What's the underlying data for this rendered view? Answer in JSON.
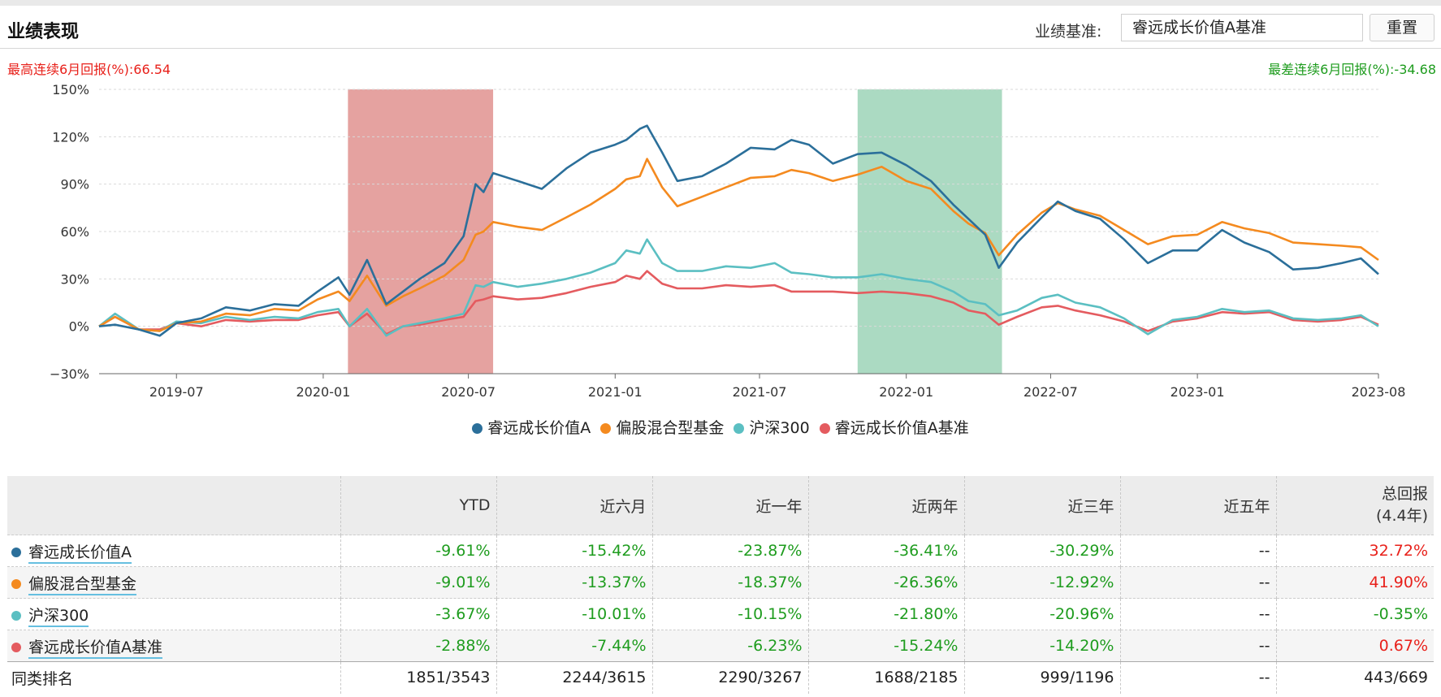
{
  "header": {
    "title": "业绩表现",
    "bench_label": "业绩基准:",
    "bench_value": "睿远成长价值A基准",
    "reset_label": "重置"
  },
  "extremes": {
    "best": "最高连续6月回报(%):66.54",
    "worst": "最差连续6月回报(%):-34.68"
  },
  "colors": {
    "fund": "#2b6f9a",
    "peer": "#f48a1f",
    "hs300": "#5bbfc2",
    "bench": "#e45b5f",
    "best_band": "#dc8380",
    "worst_band": "#8fcdae",
    "neg": "#1e9c1e",
    "pos": "#e8201a"
  },
  "chart_data": {
    "type": "line",
    "x_ticks": [
      "2019-07",
      "2020-01",
      "2020-07",
      "2021-01",
      "2021-07",
      "2022-01",
      "2022-07",
      "2023-01",
      "2023-08"
    ],
    "y_ticks": [
      "150%",
      "120%",
      "90%",
      "60%",
      "30%",
      "0%",
      "−30%"
    ],
    "ylim": [
      -30,
      150
    ],
    "grid": "horizontal dashed",
    "legend_position": "bottom",
    "highlight_bands": [
      {
        "kind": "best_6m",
        "from": "2020-02",
        "to": "2020-08"
      },
      {
        "kind": "worst_6m",
        "from": "2021-11",
        "to": "2022-05"
      }
    ],
    "series": [
      {
        "name": "睿远成长价值A",
        "points": [
          [
            "2019-03-26",
            0
          ],
          [
            "2019-04-15",
            1
          ],
          [
            "2019-05-15",
            -2
          ],
          [
            "2019-06-10",
            -6
          ],
          [
            "2019-07-01",
            2
          ],
          [
            "2019-08-01",
            5
          ],
          [
            "2019-09-01",
            12
          ],
          [
            "2019-10-01",
            10
          ],
          [
            "2019-11-01",
            14
          ],
          [
            "2019-12-01",
            13
          ],
          [
            "2019-12-25",
            22
          ],
          [
            "2020-01-20",
            31
          ],
          [
            "2020-02-03",
            20
          ],
          [
            "2020-02-25",
            42
          ],
          [
            "2020-03-20",
            14
          ],
          [
            "2020-04-10",
            22
          ],
          [
            "2020-05-01",
            30
          ],
          [
            "2020-06-01",
            40
          ],
          [
            "2020-06-25",
            57
          ],
          [
            "2020-07-10",
            90
          ],
          [
            "2020-07-20",
            85
          ],
          [
            "2020-08-01",
            97
          ],
          [
            "2020-09-01",
            92
          ],
          [
            "2020-10-01",
            87
          ],
          [
            "2020-11-01",
            100
          ],
          [
            "2020-12-01",
            110
          ],
          [
            "2021-01-01",
            115
          ],
          [
            "2021-01-15",
            118
          ],
          [
            "2021-02-01",
            125
          ],
          [
            "2021-02-10",
            127
          ],
          [
            "2021-03-01",
            110
          ],
          [
            "2021-03-20",
            92
          ],
          [
            "2021-04-20",
            95
          ],
          [
            "2021-05-20",
            103
          ],
          [
            "2021-06-20",
            113
          ],
          [
            "2021-07-20",
            112
          ],
          [
            "2021-08-10",
            118
          ],
          [
            "2021-09-01",
            115
          ],
          [
            "2021-10-01",
            103
          ],
          [
            "2021-11-01",
            109
          ],
          [
            "2021-12-01",
            110
          ],
          [
            "2022-01-01",
            102
          ],
          [
            "2022-02-01",
            92
          ],
          [
            "2022-03-01",
            77
          ],
          [
            "2022-03-20",
            68
          ],
          [
            "2022-04-10",
            58
          ],
          [
            "2022-04-27",
            37
          ],
          [
            "2022-05-20",
            53
          ],
          [
            "2022-06-20",
            69
          ],
          [
            "2022-07-10",
            79
          ],
          [
            "2022-08-01",
            73
          ],
          [
            "2022-09-01",
            68
          ],
          [
            "2022-10-01",
            55
          ],
          [
            "2022-10-31",
            40
          ],
          [
            "2022-12-01",
            48
          ],
          [
            "2023-01-01",
            48
          ],
          [
            "2023-02-01",
            61
          ],
          [
            "2023-03-01",
            53
          ],
          [
            "2023-04-01",
            47
          ],
          [
            "2023-05-01",
            36
          ],
          [
            "2023-06-01",
            37
          ],
          [
            "2023-07-01",
            40
          ],
          [
            "2023-07-25",
            43
          ],
          [
            "2023-08-16",
            33
          ]
        ]
      },
      {
        "name": "偏股混合型基金",
        "points": [
          [
            "2019-03-26",
            0
          ],
          [
            "2019-04-15",
            6
          ],
          [
            "2019-05-15",
            -2
          ],
          [
            "2019-06-10",
            -3
          ],
          [
            "2019-07-01",
            2
          ],
          [
            "2019-08-01",
            3
          ],
          [
            "2019-09-01",
            8
          ],
          [
            "2019-10-01",
            7
          ],
          [
            "2019-11-01",
            11
          ],
          [
            "2019-12-01",
            10
          ],
          [
            "2019-12-25",
            17
          ],
          [
            "2020-01-20",
            22
          ],
          [
            "2020-02-03",
            16
          ],
          [
            "2020-02-25",
            32
          ],
          [
            "2020-03-20",
            13
          ],
          [
            "2020-04-10",
            19
          ],
          [
            "2020-05-01",
            24
          ],
          [
            "2020-06-01",
            32
          ],
          [
            "2020-06-25",
            42
          ],
          [
            "2020-07-10",
            58
          ],
          [
            "2020-07-20",
            60
          ],
          [
            "2020-08-01",
            66
          ],
          [
            "2020-09-01",
            63
          ],
          [
            "2020-10-01",
            61
          ],
          [
            "2020-11-01",
            69
          ],
          [
            "2020-12-01",
            77
          ],
          [
            "2021-01-01",
            87
          ],
          [
            "2021-01-15",
            93
          ],
          [
            "2021-02-01",
            95
          ],
          [
            "2021-02-10",
            106
          ],
          [
            "2021-03-01",
            88
          ],
          [
            "2021-03-20",
            76
          ],
          [
            "2021-04-20",
            82
          ],
          [
            "2021-05-20",
            88
          ],
          [
            "2021-06-20",
            94
          ],
          [
            "2021-07-20",
            95
          ],
          [
            "2021-08-10",
            99
          ],
          [
            "2021-09-01",
            97
          ],
          [
            "2021-10-01",
            92
          ],
          [
            "2021-11-01",
            96
          ],
          [
            "2021-12-01",
            101
          ],
          [
            "2022-01-01",
            92
          ],
          [
            "2022-02-01",
            87
          ],
          [
            "2022-03-01",
            73
          ],
          [
            "2022-03-20",
            65
          ],
          [
            "2022-04-10",
            59
          ],
          [
            "2022-04-27",
            45
          ],
          [
            "2022-05-20",
            58
          ],
          [
            "2022-06-20",
            72
          ],
          [
            "2022-07-10",
            78
          ],
          [
            "2022-08-01",
            74
          ],
          [
            "2022-09-01",
            70
          ],
          [
            "2022-10-01",
            61
          ],
          [
            "2022-10-31",
            52
          ],
          [
            "2022-12-01",
            57
          ],
          [
            "2023-01-01",
            58
          ],
          [
            "2023-02-01",
            66
          ],
          [
            "2023-03-01",
            62
          ],
          [
            "2023-04-01",
            59
          ],
          [
            "2023-05-01",
            53
          ],
          [
            "2023-06-01",
            52
          ],
          [
            "2023-07-01",
            51
          ],
          [
            "2023-07-25",
            50
          ],
          [
            "2023-08-16",
            42
          ]
        ]
      },
      {
        "name": "沪深300",
        "points": [
          [
            "2019-03-26",
            0
          ],
          [
            "2019-04-15",
            8
          ],
          [
            "2019-05-15",
            -2
          ],
          [
            "2019-06-10",
            -3
          ],
          [
            "2019-07-01",
            3
          ],
          [
            "2019-08-01",
            2
          ],
          [
            "2019-09-01",
            6
          ],
          [
            "2019-10-01",
            4
          ],
          [
            "2019-11-01",
            6
          ],
          [
            "2019-12-01",
            5
          ],
          [
            "2019-12-25",
            9
          ],
          [
            "2020-01-20",
            11
          ],
          [
            "2020-02-03",
            0
          ],
          [
            "2020-02-25",
            11
          ],
          [
            "2020-03-20",
            -6
          ],
          [
            "2020-04-10",
            0
          ],
          [
            "2020-05-01",
            2
          ],
          [
            "2020-06-01",
            5
          ],
          [
            "2020-06-25",
            8
          ],
          [
            "2020-07-10",
            26
          ],
          [
            "2020-07-20",
            25
          ],
          [
            "2020-08-01",
            28
          ],
          [
            "2020-09-01",
            25
          ],
          [
            "2020-10-01",
            27
          ],
          [
            "2020-11-01",
            30
          ],
          [
            "2020-12-01",
            34
          ],
          [
            "2021-01-01",
            40
          ],
          [
            "2021-01-15",
            48
          ],
          [
            "2021-02-01",
            46
          ],
          [
            "2021-02-10",
            55
          ],
          [
            "2021-03-01",
            40
          ],
          [
            "2021-03-20",
            35
          ],
          [
            "2021-04-20",
            35
          ],
          [
            "2021-05-20",
            38
          ],
          [
            "2021-06-20",
            37
          ],
          [
            "2021-07-20",
            40
          ],
          [
            "2021-08-10",
            34
          ],
          [
            "2021-09-01",
            33
          ],
          [
            "2021-10-01",
            31
          ],
          [
            "2021-11-01",
            31
          ],
          [
            "2021-12-01",
            33
          ],
          [
            "2022-01-01",
            30
          ],
          [
            "2022-02-01",
            28
          ],
          [
            "2022-03-01",
            22
          ],
          [
            "2022-03-20",
            16
          ],
          [
            "2022-04-10",
            14
          ],
          [
            "2022-04-27",
            7
          ],
          [
            "2022-05-20",
            10
          ],
          [
            "2022-06-20",
            18
          ],
          [
            "2022-07-10",
            20
          ],
          [
            "2022-08-01",
            15
          ],
          [
            "2022-09-01",
            12
          ],
          [
            "2022-10-01",
            5
          ],
          [
            "2022-10-31",
            -5
          ],
          [
            "2022-12-01",
            4
          ],
          [
            "2023-01-01",
            6
          ],
          [
            "2023-02-01",
            11
          ],
          [
            "2023-03-01",
            9
          ],
          [
            "2023-04-01",
            10
          ],
          [
            "2023-05-01",
            5
          ],
          [
            "2023-06-01",
            4
          ],
          [
            "2023-07-01",
            5
          ],
          [
            "2023-07-25",
            7
          ],
          [
            "2023-08-16",
            0
          ]
        ]
      },
      {
        "name": "睿远成长价值A基准",
        "points": [
          [
            "2019-03-26",
            0
          ],
          [
            "2019-04-15",
            6
          ],
          [
            "2019-05-15",
            -2
          ],
          [
            "2019-06-10",
            -2
          ],
          [
            "2019-07-01",
            2
          ],
          [
            "2019-08-01",
            0
          ],
          [
            "2019-09-01",
            4
          ],
          [
            "2019-10-01",
            3
          ],
          [
            "2019-11-01",
            4
          ],
          [
            "2019-12-01",
            4
          ],
          [
            "2019-12-25",
            7
          ],
          [
            "2020-01-20",
            9
          ],
          [
            "2020-02-03",
            0
          ],
          [
            "2020-02-25",
            8
          ],
          [
            "2020-03-20",
            -5
          ],
          [
            "2020-04-10",
            0
          ],
          [
            "2020-05-01",
            1
          ],
          [
            "2020-06-01",
            4
          ],
          [
            "2020-06-25",
            6
          ],
          [
            "2020-07-10",
            16
          ],
          [
            "2020-07-20",
            17
          ],
          [
            "2020-08-01",
            19
          ],
          [
            "2020-09-01",
            17
          ],
          [
            "2020-10-01",
            18
          ],
          [
            "2020-11-01",
            21
          ],
          [
            "2020-12-01",
            25
          ],
          [
            "2021-01-01",
            28
          ],
          [
            "2021-01-15",
            32
          ],
          [
            "2021-02-01",
            30
          ],
          [
            "2021-02-10",
            35
          ],
          [
            "2021-03-01",
            27
          ],
          [
            "2021-03-20",
            24
          ],
          [
            "2021-04-20",
            24
          ],
          [
            "2021-05-20",
            26
          ],
          [
            "2021-06-20",
            25
          ],
          [
            "2021-07-20",
            26
          ],
          [
            "2021-08-10",
            22
          ],
          [
            "2021-09-01",
            22
          ],
          [
            "2021-10-01",
            22
          ],
          [
            "2021-11-01",
            21
          ],
          [
            "2021-12-01",
            22
          ],
          [
            "2022-01-01",
            21
          ],
          [
            "2022-02-01",
            19
          ],
          [
            "2022-03-01",
            15
          ],
          [
            "2022-03-20",
            10
          ],
          [
            "2022-04-10",
            8
          ],
          [
            "2022-04-27",
            1
          ],
          [
            "2022-05-20",
            6
          ],
          [
            "2022-06-20",
            12
          ],
          [
            "2022-07-10",
            13
          ],
          [
            "2022-08-01",
            10
          ],
          [
            "2022-09-01",
            7
          ],
          [
            "2022-10-01",
            3
          ],
          [
            "2022-10-31",
            -3
          ],
          [
            "2022-12-01",
            3
          ],
          [
            "2023-01-01",
            5
          ],
          [
            "2023-02-01",
            9
          ],
          [
            "2023-03-01",
            8
          ],
          [
            "2023-04-01",
            9
          ],
          [
            "2023-05-01",
            4
          ],
          [
            "2023-06-01",
            3
          ],
          [
            "2023-07-01",
            4
          ],
          [
            "2023-07-25",
            6
          ],
          [
            "2023-08-16",
            1
          ]
        ]
      }
    ]
  },
  "table": {
    "headers": [
      "",
      "YTD",
      "近六月",
      "近一年",
      "近两年",
      "近三年",
      "近五年"
    ],
    "total_header_line1": "总回报",
    "total_header_line2": "(4.4年)",
    "rows": [
      {
        "name": "睿远成长价值A",
        "values": [
          "-9.61%",
          "-15.42%",
          "-23.87%",
          "-36.41%",
          "-30.29%",
          "--",
          "32.72%"
        ]
      },
      {
        "name": "偏股混合型基金",
        "values": [
          "-9.01%",
          "-13.37%",
          "-18.37%",
          "-26.36%",
          "-12.92%",
          "--",
          "41.90%"
        ]
      },
      {
        "name": "沪深300",
        "values": [
          "-3.67%",
          "-10.01%",
          "-10.15%",
          "-21.80%",
          "-20.96%",
          "--",
          "-0.35%"
        ]
      },
      {
        "name": "睿远成长价值A基准",
        "values": [
          "-2.88%",
          "-7.44%",
          "-6.23%",
          "-15.24%",
          "-14.20%",
          "--",
          "0.67%"
        ]
      }
    ],
    "rank": {
      "label": "同类排名",
      "values": [
        "1851/3543",
        "2244/3615",
        "2290/3267",
        "1688/2185",
        "999/1196",
        "--",
        "443/669"
      ]
    }
  }
}
